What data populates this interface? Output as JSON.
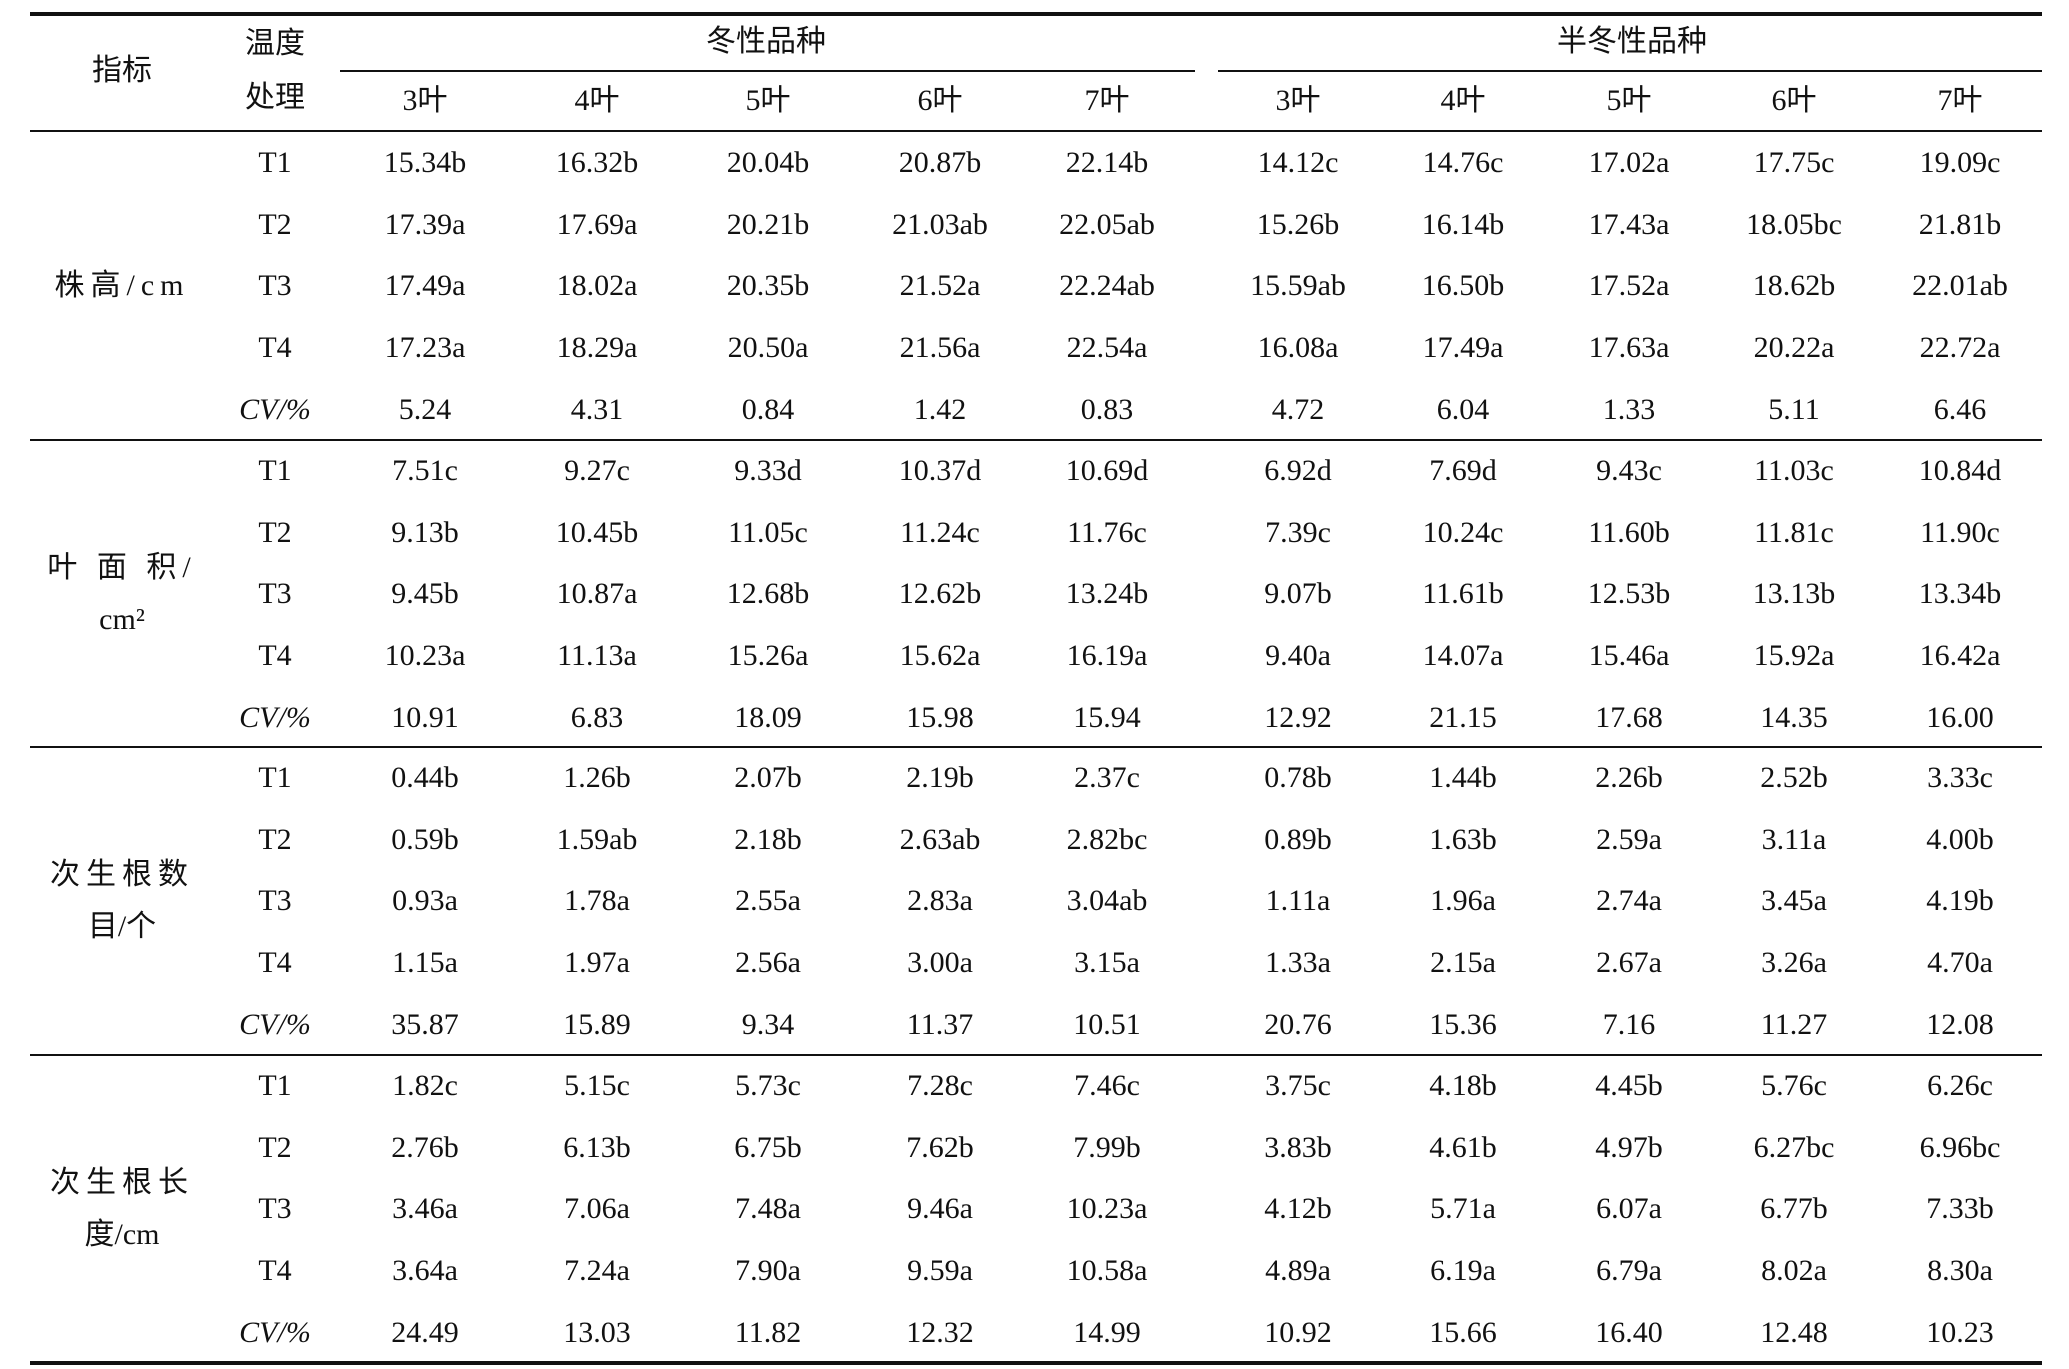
{
  "header": {
    "metric": "指标",
    "temp_line1": "温度",
    "temp_line2": "处理",
    "group_winter": "冬性品种",
    "group_semi": "半冬性品种",
    "leaf_stages": [
      "3叶",
      "4叶",
      "5叶",
      "6叶",
      "7叶"
    ]
  },
  "sections": [
    {
      "label_lines": [
        "株高/cm"
      ],
      "rows": [
        {
          "treat": "T1",
          "values": [
            "15.34b",
            "16.32b",
            "20.04b",
            "20.87b",
            "22.14b",
            "14.12c",
            "14.76c",
            "17.02a",
            "17.75c",
            "19.09c"
          ]
        },
        {
          "treat": "T2",
          "values": [
            "17.39a",
            "17.69a",
            "20.21b",
            "21.03ab",
            "22.05ab",
            "15.26b",
            "16.14b",
            "17.43a",
            "18.05bc",
            "21.81b"
          ]
        },
        {
          "treat": "T3",
          "values": [
            "17.49a",
            "18.02a",
            "20.35b",
            "21.52a",
            "22.24ab",
            "15.59ab",
            "16.50b",
            "17.52a",
            "18.62b",
            "22.01ab"
          ]
        },
        {
          "treat": "T4",
          "values": [
            "17.23a",
            "18.29a",
            "20.50a",
            "21.56a",
            "22.54a",
            "16.08a",
            "17.49a",
            "17.63a",
            "20.22a",
            "22.72a"
          ]
        },
        {
          "treat": "CV/%",
          "values": [
            "5.24",
            "4.31",
            "0.84",
            "1.42",
            "0.83",
            "4.72",
            "6.04",
            "1.33",
            "5.11",
            "6.46"
          ]
        }
      ]
    },
    {
      "label_lines": [
        "叶 面 积/",
        "cm²"
      ],
      "rows": [
        {
          "treat": "T1",
          "values": [
            "7.51c",
            "9.27c",
            "9.33d",
            "10.37d",
            "10.69d",
            "6.92d",
            "7.69d",
            "9.43c",
            "11.03c",
            "10.84d"
          ]
        },
        {
          "treat": "T2",
          "values": [
            "9.13b",
            "10.45b",
            "11.05c",
            "11.24c",
            "11.76c",
            "7.39c",
            "10.24c",
            "11.60b",
            "11.81c",
            "11.90c"
          ]
        },
        {
          "treat": "T3",
          "values": [
            "9.45b",
            "10.87a",
            "12.68b",
            "12.62b",
            "13.24b",
            "9.07b",
            "11.61b",
            "12.53b",
            "13.13b",
            "13.34b"
          ]
        },
        {
          "treat": "T4",
          "values": [
            "10.23a",
            "11.13a",
            "15.26a",
            "15.62a",
            "16.19a",
            "9.40a",
            "14.07a",
            "15.46a",
            "15.92a",
            "16.42a"
          ]
        },
        {
          "treat": "CV/%",
          "values": [
            "10.91",
            "6.83",
            "18.09",
            "15.98",
            "15.94",
            "12.92",
            "21.15",
            "17.68",
            "14.35",
            "16.00"
          ]
        }
      ]
    },
    {
      "label_lines": [
        "次生根数",
        "目/个"
      ],
      "rows": [
        {
          "treat": "T1",
          "values": [
            "0.44b",
            "1.26b",
            "2.07b",
            "2.19b",
            "2.37c",
            "0.78b",
            "1.44b",
            "2.26b",
            "2.52b",
            "3.33c"
          ]
        },
        {
          "treat": "T2",
          "values": [
            "0.59b",
            "1.59ab",
            "2.18b",
            "2.63ab",
            "2.82bc",
            "0.89b",
            "1.63b",
            "2.59a",
            "3.11a",
            "4.00b"
          ]
        },
        {
          "treat": "T3",
          "values": [
            "0.93a",
            "1.78a",
            "2.55a",
            "2.83a",
            "3.04ab",
            "1.11a",
            "1.96a",
            "2.74a",
            "3.45a",
            "4.19b"
          ]
        },
        {
          "treat": "T4",
          "values": [
            "1.15a",
            "1.97a",
            "2.56a",
            "3.00a",
            "3.15a",
            "1.33a",
            "2.15a",
            "2.67a",
            "3.26a",
            "4.70a"
          ]
        },
        {
          "treat": "CV/%",
          "values": [
            "35.87",
            "15.89",
            "9.34",
            "11.37",
            "10.51",
            "20.76",
            "15.36",
            "7.16",
            "11.27",
            "12.08"
          ]
        }
      ]
    },
    {
      "label_lines": [
        "次生根长",
        "度/cm"
      ],
      "rows": [
        {
          "treat": "T1",
          "values": [
            "1.82c",
            "5.15c",
            "5.73c",
            "7.28c",
            "7.46c",
            "3.75c",
            "4.18b",
            "4.45b",
            "5.76c",
            "6.26c"
          ]
        },
        {
          "treat": "T2",
          "values": [
            "2.76b",
            "6.13b",
            "6.75b",
            "7.62b",
            "7.99b",
            "3.83b",
            "4.61b",
            "4.97b",
            "6.27bc",
            "6.96bc"
          ]
        },
        {
          "treat": "T3",
          "values": [
            "3.46a",
            "7.06a",
            "7.48a",
            "9.46a",
            "10.23a",
            "4.12b",
            "5.71a",
            "6.07a",
            "6.77b",
            "7.33b"
          ]
        },
        {
          "treat": "T4",
          "values": [
            "3.64a",
            "7.24a",
            "7.90a",
            "9.59a",
            "10.58a",
            "4.89a",
            "6.19a",
            "6.79a",
            "8.02a",
            "8.30a"
          ]
        },
        {
          "treat": "CV/%",
          "values": [
            "24.49",
            "13.03",
            "11.82",
            "12.32",
            "14.99",
            "10.92",
            "15.66",
            "16.40",
            "12.48",
            "10.23"
          ]
        }
      ]
    }
  ]
}
